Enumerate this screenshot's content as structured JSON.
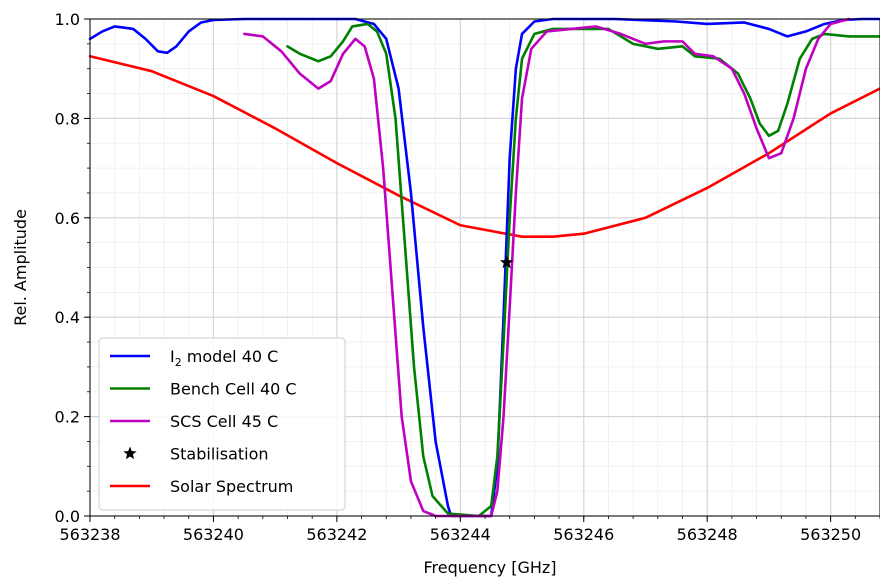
{
  "chart_data": {
    "type": "line",
    "title": "",
    "xlabel": "Frequency [GHz]",
    "ylabel": "Rel. Amplitude",
    "xlim": [
      563238,
      563250.8
    ],
    "ylim": [
      0.0,
      1.0
    ],
    "xticks": [
      563238,
      563240,
      563242,
      563244,
      563246,
      563248,
      563250
    ],
    "yticks": [
      0.0,
      0.2,
      0.4,
      0.6,
      0.8,
      1.0
    ],
    "ytick_labels": [
      "0.0",
      "0.2",
      "0.4",
      "0.6",
      "0.8",
      "1.0"
    ],
    "grid": true,
    "legend_position": "lower-left",
    "series": [
      {
        "name": "I2 model 40 C",
        "legend_main": "I",
        "legend_sub": "2",
        "legend_rest": " model 40 C",
        "color": "#0000ff",
        "kind": "line",
        "points": [
          [
            563238.0,
            0.96
          ],
          [
            563238.2,
            0.975
          ],
          [
            563238.4,
            0.985
          ],
          [
            563238.7,
            0.98
          ],
          [
            563238.9,
            0.96
          ],
          [
            563239.1,
            0.935
          ],
          [
            563239.25,
            0.932
          ],
          [
            563239.4,
            0.945
          ],
          [
            563239.6,
            0.975
          ],
          [
            563239.8,
            0.993
          ],
          [
            563240.0,
            0.998
          ],
          [
            563240.5,
            1.0
          ],
          [
            563241.5,
            1.0
          ],
          [
            563242.3,
            1.0
          ],
          [
            563242.6,
            0.99
          ],
          [
            563242.8,
            0.96
          ],
          [
            563243.0,
            0.86
          ],
          [
            563243.2,
            0.65
          ],
          [
            563243.4,
            0.38
          ],
          [
            563243.6,
            0.15
          ],
          [
            563243.8,
            0.02
          ],
          [
            563243.85,
            0.0
          ],
          [
            563244.5,
            0.0
          ],
          [
            563244.6,
            0.1
          ],
          [
            563244.7,
            0.4
          ],
          [
            563244.8,
            0.72
          ],
          [
            563244.9,
            0.9
          ],
          [
            563245.0,
            0.97
          ],
          [
            563245.2,
            0.995
          ],
          [
            563245.5,
            1.0
          ],
          [
            563246.5,
            1.0
          ],
          [
            563247.5,
            0.995
          ],
          [
            563248.0,
            0.99
          ],
          [
            563248.6,
            0.993
          ],
          [
            563249.0,
            0.98
          ],
          [
            563249.3,
            0.965
          ],
          [
            563249.6,
            0.975
          ],
          [
            563249.9,
            0.99
          ],
          [
            563250.2,
            0.998
          ],
          [
            563250.5,
            1.0
          ],
          [
            563250.8,
            1.0
          ]
        ]
      },
      {
        "name": "Bench Cell 40 C",
        "color": "#008000",
        "kind": "line",
        "points": [
          [
            563241.2,
            0.945
          ],
          [
            563241.4,
            0.93
          ],
          [
            563241.7,
            0.915
          ],
          [
            563241.9,
            0.925
          ],
          [
            563242.1,
            0.955
          ],
          [
            563242.25,
            0.985
          ],
          [
            563242.5,
            0.99
          ],
          [
            563242.65,
            0.975
          ],
          [
            563242.8,
            0.93
          ],
          [
            563242.95,
            0.8
          ],
          [
            563243.1,
            0.55
          ],
          [
            563243.25,
            0.3
          ],
          [
            563243.4,
            0.12
          ],
          [
            563243.55,
            0.04
          ],
          [
            563243.8,
            0.005
          ],
          [
            563244.3,
            0.0
          ],
          [
            563244.5,
            0.02
          ],
          [
            563244.6,
            0.12
          ],
          [
            563244.7,
            0.35
          ],
          [
            563244.8,
            0.6
          ],
          [
            563244.9,
            0.8
          ],
          [
            563245.0,
            0.92
          ],
          [
            563245.2,
            0.97
          ],
          [
            563245.5,
            0.98
          ],
          [
            563246.0,
            0.98
          ],
          [
            563246.4,
            0.98
          ],
          [
            563246.8,
            0.95
          ],
          [
            563247.2,
            0.94
          ],
          [
            563247.6,
            0.945
          ],
          [
            563247.8,
            0.925
          ],
          [
            563248.2,
            0.92
          ],
          [
            563248.5,
            0.89
          ],
          [
            563248.7,
            0.84
          ],
          [
            563248.85,
            0.79
          ],
          [
            563249.0,
            0.765
          ],
          [
            563249.15,
            0.775
          ],
          [
            563249.3,
            0.83
          ],
          [
            563249.5,
            0.92
          ],
          [
            563249.7,
            0.96
          ],
          [
            563249.9,
            0.97
          ],
          [
            563250.3,
            0.965
          ],
          [
            563250.8,
            0.965
          ]
        ]
      },
      {
        "name": "SCS Cell 45 C",
        "color": "#c000c0",
        "kind": "line",
        "points": [
          [
            563240.5,
            0.97
          ],
          [
            563240.8,
            0.965
          ],
          [
            563241.1,
            0.935
          ],
          [
            563241.4,
            0.89
          ],
          [
            563241.7,
            0.86
          ],
          [
            563241.9,
            0.875
          ],
          [
            563242.1,
            0.93
          ],
          [
            563242.3,
            0.96
          ],
          [
            563242.45,
            0.945
          ],
          [
            563242.6,
            0.88
          ],
          [
            563242.75,
            0.7
          ],
          [
            563242.9,
            0.45
          ],
          [
            563243.05,
            0.2
          ],
          [
            563243.2,
            0.07
          ],
          [
            563243.4,
            0.01
          ],
          [
            563243.6,
            0.0
          ],
          [
            563244.5,
            0.0
          ],
          [
            563244.6,
            0.05
          ],
          [
            563244.7,
            0.2
          ],
          [
            563244.8,
            0.42
          ],
          [
            563244.9,
            0.65
          ],
          [
            563245.0,
            0.84
          ],
          [
            563245.15,
            0.94
          ],
          [
            563245.4,
            0.975
          ],
          [
            563245.8,
            0.98
          ],
          [
            563246.2,
            0.985
          ],
          [
            563246.6,
            0.97
          ],
          [
            563247.0,
            0.95
          ],
          [
            563247.3,
            0.955
          ],
          [
            563247.6,
            0.955
          ],
          [
            563247.8,
            0.93
          ],
          [
            563248.1,
            0.925
          ],
          [
            563248.4,
            0.9
          ],
          [
            563248.6,
            0.85
          ],
          [
            563248.8,
            0.78
          ],
          [
            563249.0,
            0.72
          ],
          [
            563249.2,
            0.73
          ],
          [
            563249.4,
            0.8
          ],
          [
            563249.6,
            0.9
          ],
          [
            563249.8,
            0.96
          ],
          [
            563250.0,
            0.99
          ],
          [
            563250.3,
            1.0
          ]
        ]
      },
      {
        "name": "Stabilisation",
        "color": "#000000",
        "kind": "marker",
        "points": [
          [
            563244.75,
            0.51
          ]
        ]
      },
      {
        "name": "Solar Spectrum",
        "color": "#ff0000",
        "kind": "line",
        "points": [
          [
            563238.0,
            0.925
          ],
          [
            563239.0,
            0.895
          ],
          [
            563240.0,
            0.845
          ],
          [
            563241.0,
            0.78
          ],
          [
            563242.0,
            0.71
          ],
          [
            563243.0,
            0.645
          ],
          [
            563244.0,
            0.585
          ],
          [
            563245.0,
            0.562
          ],
          [
            563245.5,
            0.562
          ],
          [
            563246.0,
            0.568
          ],
          [
            563247.0,
            0.6
          ],
          [
            563248.0,
            0.66
          ],
          [
            563249.0,
            0.73
          ],
          [
            563250.0,
            0.81
          ],
          [
            563250.8,
            0.86
          ]
        ]
      }
    ]
  }
}
